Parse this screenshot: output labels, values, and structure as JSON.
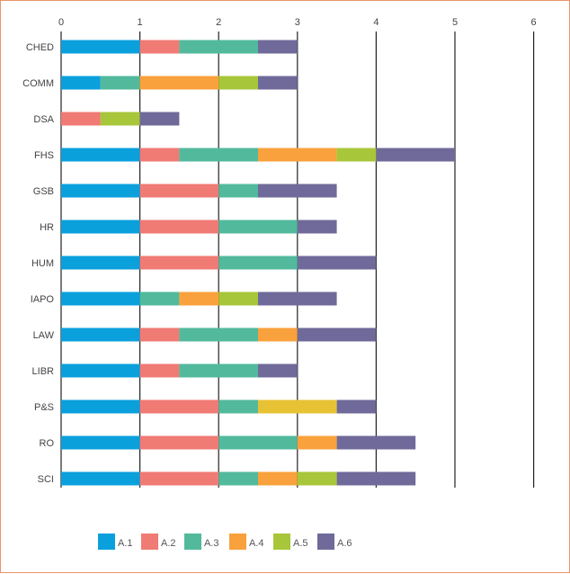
{
  "chart_data": {
    "type": "bar",
    "orientation": "horizontal",
    "stacked": true,
    "xlim": [
      0,
      6
    ],
    "x_ticks": [
      "0",
      "1",
      "2",
      "3",
      "4",
      "5",
      "6"
    ],
    "categories": [
      "CHED",
      "COMM",
      "DSA",
      "FHS",
      "GSB",
      "HR",
      "HUM",
      "IAPO",
      "LAW",
      "LIBR",
      "P&S",
      "RO",
      "SCI"
    ],
    "series": [
      {
        "name": "A.1",
        "color": "#0aa0dc",
        "values": [
          1,
          0.5,
          0,
          1,
          1,
          1,
          1,
          1,
          1,
          1,
          1,
          1,
          1
        ]
      },
      {
        "name": "A.2",
        "color": "#f07a74",
        "values": [
          0.5,
          0,
          0.5,
          0.5,
          1,
          1,
          1,
          0,
          0.5,
          0.5,
          1,
          1,
          1
        ]
      },
      {
        "name": "A.3",
        "color": "#52b99c",
        "values": [
          1,
          0.5,
          0,
          1,
          0.5,
          1,
          1,
          0.5,
          1,
          1,
          0.5,
          1,
          0.5
        ]
      },
      {
        "name": "A.4",
        "color": "#f9a13c",
        "values": [
          0,
          1,
          0,
          1,
          0,
          0,
          0,
          0.5,
          0.5,
          0,
          0,
          0.5,
          0.5
        ]
      },
      {
        "name": "A.5",
        "color": "#a8c63a",
        "values": [
          0,
          0.5,
          0.5,
          0.5,
          0,
          0,
          0,
          0.5,
          0,
          0,
          1,
          0,
          0.5
        ]
      },
      {
        "name": "A.6",
        "color": "#6f6a99",
        "values": [
          0.5,
          0.5,
          0.5,
          1,
          1,
          0.5,
          1,
          1,
          1,
          0.5,
          0.5,
          1,
          1
        ]
      }
    ],
    "segment_color_overrides": [
      {
        "category": "P&S",
        "series": "A.5",
        "color": "#e8c235"
      }
    ],
    "grid": "vertical",
    "legend": "bottom"
  }
}
